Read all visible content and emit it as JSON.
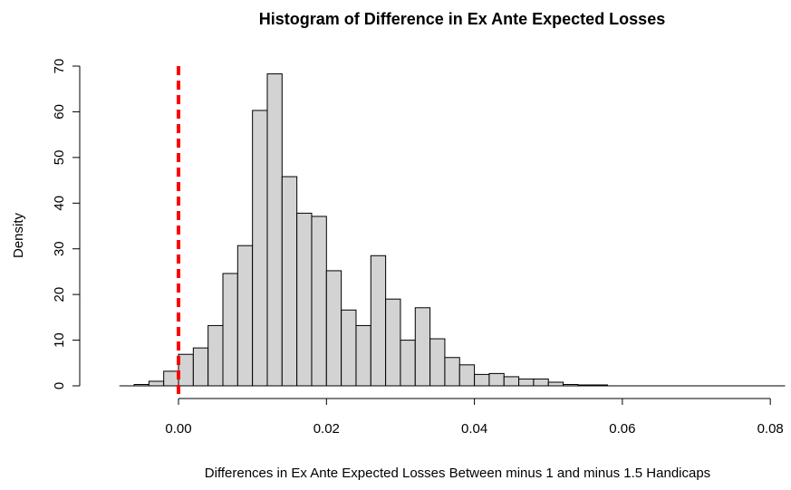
{
  "chart_data": {
    "type": "histogram",
    "title": "Histogram of Difference in Ex Ante Expected Losses",
    "x_label": "Differences in Ex Ante Expected Losses Between minus 1 and minus 1.5 Handicaps",
    "y_label": "Density",
    "bins": [
      -0.006,
      -0.004,
      -0.002,
      0,
      0.002,
      0.004,
      0.006,
      0.008,
      0.01,
      0.012,
      0.014,
      0.016,
      0.018,
      0.02,
      0.022,
      0.024,
      0.026,
      0.028,
      0.03,
      0.032,
      0.034,
      0.036,
      0.038,
      0.04,
      0.042,
      0.044,
      0.046,
      0.048,
      0.05,
      0.052,
      0.054,
      0.056,
      0.058
    ],
    "values": [
      0.3,
      1.0,
      3.2,
      6.9,
      8.3,
      13.2,
      24.6,
      30.7,
      60.3,
      68.3,
      45.8,
      37.8,
      37.1,
      25.2,
      16.6,
      13.2,
      28.5,
      19.0,
      10.0,
      17.1,
      10.3,
      6.2,
      4.6,
      2.5,
      2.7,
      2.0,
      1.5,
      1.5,
      0.8,
      0.3,
      0.2,
      0.2
    ],
    "color": "#d3d3d3",
    "xlim": [
      -0.008,
      0.082
    ],
    "xticks": [
      {
        "value": 0,
        "label": "0.00"
      },
      {
        "value": 0.02,
        "label": "0.02"
      },
      {
        "value": 0.04,
        "label": "0.04"
      },
      {
        "value": 0.06,
        "label": "0.06"
      },
      {
        "value": 0.08,
        "label": "0.08"
      }
    ],
    "ylim": [
      0,
      70
    ],
    "yticks": [
      0,
      10,
      20,
      30,
      40,
      50,
      60,
      70
    ],
    "vline": 0,
    "vline_color": "#ff0000"
  }
}
